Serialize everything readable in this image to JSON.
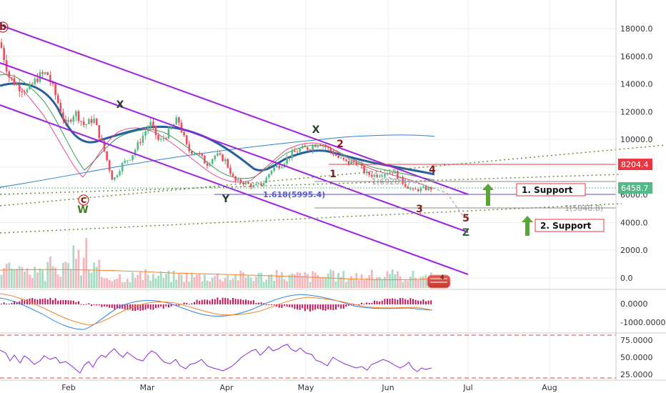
{
  "chart_data": [
    {
      "type": "line",
      "panel": "price",
      "description": "Bitcoin daily candlestick chart with downtrend channels and Elliott wave labels",
      "y_axis": {
        "ticks": [
          0,
          2000,
          4000,
          6000,
          8000,
          10000,
          12000,
          14000,
          16000,
          18000
        ],
        "tick_labels": [
          "0.0",
          "2000.0",
          "4000.0",
          "6000.0",
          "8000.0",
          "10000.0",
          "12000.0",
          "14000.0",
          "16000.0",
          "18000.0"
        ],
        "ylim": [
          -800,
          19200
        ]
      },
      "x_axis": {
        "tick_labels": [
          "Feb",
          "Mar",
          "Apr",
          "May",
          "Jun",
          "Jul",
          "Aug"
        ]
      },
      "price_path": [
        [
          "Dec 21",
          17000
        ],
        [
          "Dec 24",
          14500
        ],
        [
          "Dec 28",
          13800
        ],
        [
          "Jan 1",
          13500
        ],
        [
          "Jan 4",
          14500
        ],
        [
          "Jan 8",
          14800
        ],
        [
          "Jan 12",
          13000
        ],
        [
          "Jan 16",
          11000
        ],
        [
          "Jan 20",
          12000
        ],
        [
          "Jan 24",
          11000
        ],
        [
          "Jan 28",
          11500
        ],
        [
          "Feb 1",
          9500
        ],
        [
          "Feb 5",
          7000
        ],
        [
          "Feb 8",
          8200
        ],
        [
          "Feb 12",
          8800
        ],
        [
          "Feb 16",
          10000
        ],
        [
          "Feb 20",
          11200
        ],
        [
          "Feb 24",
          9800
        ],
        [
          "Feb 28",
          10500
        ],
        [
          "Mar 5",
          11500
        ],
        [
          "Mar 9",
          9200
        ],
        [
          "Mar 13",
          9100
        ],
        [
          "Mar 17",
          8200
        ],
        [
          "Mar 21",
          8900
        ],
        [
          "Mar 25",
          8500
        ],
        [
          "Mar 29",
          7000
        ],
        [
          "Apr 2",
          6900
        ],
        [
          "Apr 6",
          6600
        ],
        [
          "Apr 10",
          6800
        ],
        [
          "Apr 13",
          7900
        ],
        [
          "Apr 17",
          8200
        ],
        [
          "Apr 21",
          8900
        ],
        [
          "Apr 25",
          9300
        ],
        [
          "Apr 29",
          9400
        ],
        [
          "May 5",
          9800
        ],
        [
          "May 9",
          9300
        ],
        [
          "May 13",
          8700
        ],
        [
          "May 17",
          8300
        ],
        [
          "May 21",
          8400
        ],
        [
          "May 25",
          7500
        ],
        [
          "May 29",
          7400
        ],
        [
          "Jun 2",
          7600
        ],
        [
          "Jun 6",
          7700
        ],
        [
          "Jun 10",
          6800
        ],
        [
          "Jun 13",
          6300
        ],
        [
          "Jun 16",
          6450
        ],
        [
          "Jun 18",
          6450
        ]
      ],
      "price_labels": [
        {
          "text": "8204.4",
          "value": 8204.4,
          "color": "#e8373e"
        },
        {
          "text": "6458.7",
          "value": 6458.7,
          "color": "#53b987"
        }
      ],
      "annotations": [
        {
          "text": "b",
          "kind": "wave"
        },
        {
          "text": "c",
          "kind": "wave"
        },
        {
          "text": "W",
          "kind": "wave"
        },
        {
          "text": "X",
          "kind": "wave"
        },
        {
          "text": "Y",
          "kind": "wave"
        },
        {
          "text": "X",
          "kind": "wave"
        },
        {
          "text": "2",
          "kind": "wave"
        },
        {
          "text": "1",
          "kind": "wave"
        },
        {
          "text": "4",
          "kind": "wave"
        },
        {
          "text": "3",
          "kind": "wave"
        },
        {
          "text": "5",
          "kind": "wave"
        },
        {
          "text": "Z",
          "kind": "wave"
        },
        {
          "text": "1.618(5995.4)",
          "value": 5995.4
        },
        {
          "text": "1(6928.4)",
          "value": 6928.4
        },
        {
          "text": "1(5048.8)",
          "value": 5048.8
        },
        {
          "text": "1. Support"
        },
        {
          "text": "2. Support"
        }
      ]
    },
    {
      "type": "line",
      "panel": "macd",
      "y_axis": {
        "ticks": [
          0,
          -1000
        ],
        "tick_labels": [
          "0.0000",
          "-1000.0000"
        ]
      }
    },
    {
      "type": "line",
      "panel": "rsi",
      "y_axis": {
        "ticks": [
          75,
          50,
          25
        ],
        "tick_labels": [
          "75.0000",
          "50.0000",
          "25.0000"
        ]
      }
    }
  ],
  "badge": {
    "count": "4"
  }
}
